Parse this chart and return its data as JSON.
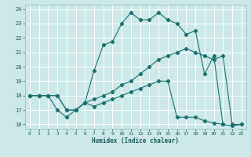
{
  "xlabel": "Humidex (Indice chaleur)",
  "bg_color": "#cce8e8",
  "grid_color": "#ffffff",
  "line_color": "#1a7070",
  "xlim": [
    -0.5,
    23.5
  ],
  "ylim": [
    15.7,
    24.3
  ],
  "xticks": [
    0,
    1,
    2,
    3,
    4,
    5,
    6,
    7,
    8,
    9,
    10,
    11,
    12,
    13,
    14,
    15,
    16,
    17,
    18,
    19,
    20,
    21,
    22,
    23
  ],
  "yticks": [
    16,
    17,
    18,
    19,
    20,
    21,
    22,
    23,
    24
  ],
  "line1_x": [
    0,
    1,
    2,
    3,
    4,
    5,
    6,
    7,
    8,
    9,
    10,
    11,
    12,
    13,
    14,
    15,
    16,
    17,
    18,
    19,
    20,
    21
  ],
  "line1_y": [
    18,
    18,
    18,
    17,
    16.5,
    17,
    17.5,
    19.75,
    21.5,
    21.75,
    23,
    23.75,
    23.25,
    23.25,
    23.75,
    23.25,
    23,
    22.25,
    22.5,
    19.5,
    20.75,
    16
  ],
  "line2_x": [
    0,
    1,
    2,
    3,
    4,
    5,
    6,
    7,
    8,
    9,
    10,
    11,
    12,
    13,
    14,
    15,
    16,
    17,
    18,
    19,
    20,
    21,
    22,
    23
  ],
  "line2_y": [
    18,
    18,
    18,
    18,
    17,
    17,
    17.5,
    17.75,
    18,
    18.25,
    18.75,
    19,
    19.5,
    20,
    20.5,
    20.75,
    21,
    21.25,
    21,
    20.75,
    20.5,
    20.75,
    16,
    16
  ],
  "line3_x": [
    0,
    1,
    2,
    3,
    4,
    5,
    6,
    7,
    8,
    9,
    10,
    11,
    12,
    13,
    14,
    15,
    16,
    17,
    18,
    19,
    20,
    21,
    22,
    23
  ],
  "line3_y": [
    18,
    18,
    18,
    18,
    17,
    17,
    17.5,
    17.25,
    17.5,
    17.75,
    18,
    18.25,
    18.5,
    18.75,
    19,
    19,
    16.5,
    16.5,
    16.5,
    16.25,
    16.1,
    16,
    15.9,
    16
  ]
}
